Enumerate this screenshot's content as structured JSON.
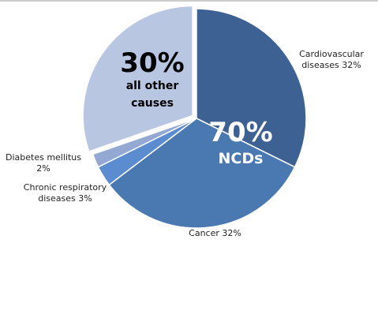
{
  "chart_data": {
    "type": "pie",
    "categories": [
      "Cardiovascular diseases",
      "Cancer",
      "Chronic respiratory diseases",
      "Diabetes mellitus",
      "All other causes"
    ],
    "values": [
      32,
      32,
      3,
      2,
      30
    ],
    "value_labels": [
      "Cardiovascular diseases 32%",
      "Cancer 32%",
      "Chronic respiratory diseases 3%",
      "Diabetes mellitus 2%",
      null
    ],
    "colors": [
      "#3c6192",
      "#4a78b1",
      "#5a8ccf",
      "#93a9d2",
      "#b9c6e2"
    ],
    "exploded": [
      false,
      false,
      false,
      false,
      true
    ],
    "annotations": [
      "70%",
      "NCDs",
      "30%",
      "all other causes"
    ],
    "legend": "bottom"
  }
}
